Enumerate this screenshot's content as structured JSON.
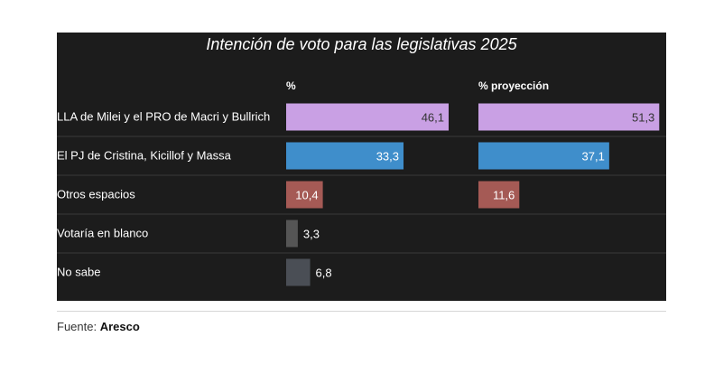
{
  "chart_data": {
    "type": "bar",
    "title": "Intención de voto para las legislativas 2025",
    "categories": [
      "LLA de Milei y el PRO de Macri y Bullrich",
      "El PJ de Cristina, Kicillof y Massa",
      "Otros espacios",
      "Votaría en blanco",
      "No sabe"
    ],
    "series": [
      {
        "name": "%",
        "values": [
          46.1,
          33.3,
          10.4,
          3.3,
          6.8
        ],
        "labels": [
          "46,1",
          "33,3",
          "10,4",
          "3,3",
          "6,8"
        ]
      },
      {
        "name": "% proyección",
        "values": [
          51.3,
          37.1,
          11.6,
          null,
          null
        ],
        "labels": [
          "51,3",
          "37,1",
          "11,6",
          "",
          ""
        ]
      }
    ],
    "colors": [
      "#c9a0e4",
      "#3f8ecb",
      "#a55a55",
      "#555555",
      "#4a4e55"
    ],
    "legend": "none",
    "grid": false
  },
  "source": {
    "prefix": "Fuente:",
    "name": "Aresco"
  }
}
